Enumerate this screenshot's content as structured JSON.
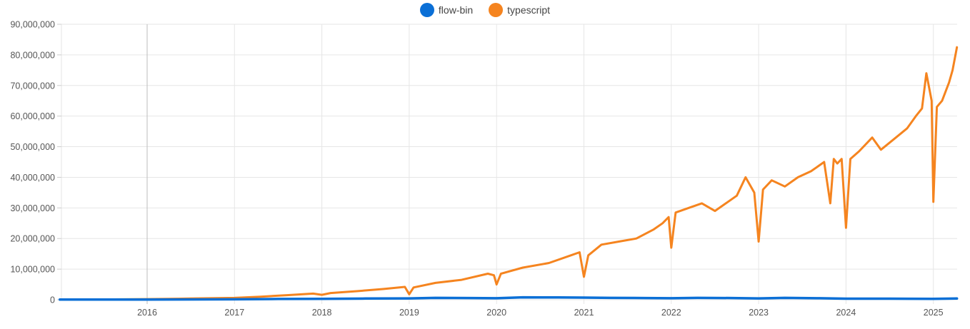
{
  "legend": {
    "items": [
      {
        "name": "flow-bin",
        "color": "#0b6fd6"
      },
      {
        "name": "typescript",
        "color": "#f5841f"
      }
    ]
  },
  "chart_data": {
    "type": "line",
    "title": "",
    "xlabel": "",
    "ylabel": "",
    "grid": true,
    "legend_position": "top",
    "ylim": [
      0,
      90000000
    ],
    "xlim": [
      2015.0,
      2025.27
    ],
    "y_ticks": [
      "0",
      "10,000,000",
      "20,000,000",
      "30,000,000",
      "40,000,000",
      "50,000,000",
      "60,000,000",
      "70,000,000",
      "80,000,000",
      "90,000,000"
    ],
    "x_ticks": [
      "2016",
      "2017",
      "2018",
      "2019",
      "2020",
      "2021",
      "2022",
      "2023",
      "2024",
      "2025"
    ],
    "highlight_x": 2016,
    "series": [
      {
        "name": "flow-bin",
        "color": "#0b6fd6",
        "x": [
          2015.0,
          2016.0,
          2017.0,
          2017.5,
          2018.0,
          2018.5,
          2019.0,
          2019.3,
          2019.7,
          2020.0,
          2020.3,
          2020.7,
          2021.0,
          2021.3,
          2021.7,
          2022.0,
          2022.3,
          2022.7,
          2023.0,
          2023.3,
          2023.7,
          2024.0,
          2024.5,
          2025.0,
          2025.27
        ],
        "values": [
          50000,
          80000,
          150000,
          250000,
          300000,
          400000,
          450000,
          600000,
          550000,
          500000,
          800000,
          750000,
          700000,
          600000,
          550000,
          500000,
          600000,
          550000,
          450000,
          600000,
          500000,
          350000,
          350000,
          300000,
          400000
        ]
      },
      {
        "name": "typescript",
        "color": "#f5841f",
        "x": [
          2015.0,
          2015.5,
          2016.0,
          2016.5,
          2017.0,
          2017.3,
          2017.6,
          2017.9,
          2018.0,
          2018.1,
          2018.4,
          2018.7,
          2018.95,
          2019.0,
          2019.05,
          2019.3,
          2019.6,
          2019.9,
          2019.97,
          2020.0,
          2020.05,
          2020.3,
          2020.6,
          2020.85,
          2020.95,
          2021.0,
          2021.05,
          2021.2,
          2021.4,
          2021.6,
          2021.8,
          2021.9,
          2021.97,
          2022.0,
          2022.05,
          2022.2,
          2022.35,
          2022.5,
          2022.6,
          2022.75,
          2022.85,
          2022.95,
          2023.0,
          2023.05,
          2023.15,
          2023.3,
          2023.45,
          2023.6,
          2023.75,
          2023.82,
          2023.86,
          2023.9,
          2023.95,
          2024.0,
          2024.05,
          2024.15,
          2024.3,
          2024.4,
          2024.55,
          2024.7,
          2024.8,
          2024.87,
          2024.92,
          2024.98,
          2025.0,
          2025.04,
          2025.1,
          2025.18,
          2025.22,
          2025.27
        ],
        "values": [
          50000,
          100000,
          200000,
          400000,
          600000,
          1000000,
          1500000,
          2000000,
          1600000,
          2200000,
          2800000,
          3500000,
          4200000,
          1800000,
          4000000,
          5500000,
          6500000,
          8500000,
          8000000,
          5000000,
          8500000,
          10500000,
          12000000,
          14500000,
          15500000,
          7500000,
          14500000,
          18000000,
          19000000,
          20000000,
          23000000,
          25000000,
          27000000,
          17000000,
          28500000,
          30000000,
          31500000,
          29000000,
          31000000,
          34000000,
          40000000,
          35000000,
          19000000,
          36000000,
          39000000,
          37000000,
          40000000,
          42000000,
          45000000,
          31500000,
          46000000,
          44500000,
          46000000,
          23500000,
          46000000,
          48500000,
          53000000,
          49000000,
          52500000,
          56000000,
          60000000,
          62500000,
          74000000,
          65000000,
          32000000,
          63000000,
          65000000,
          71000000,
          75000000,
          82500000
        ]
      }
    ]
  }
}
